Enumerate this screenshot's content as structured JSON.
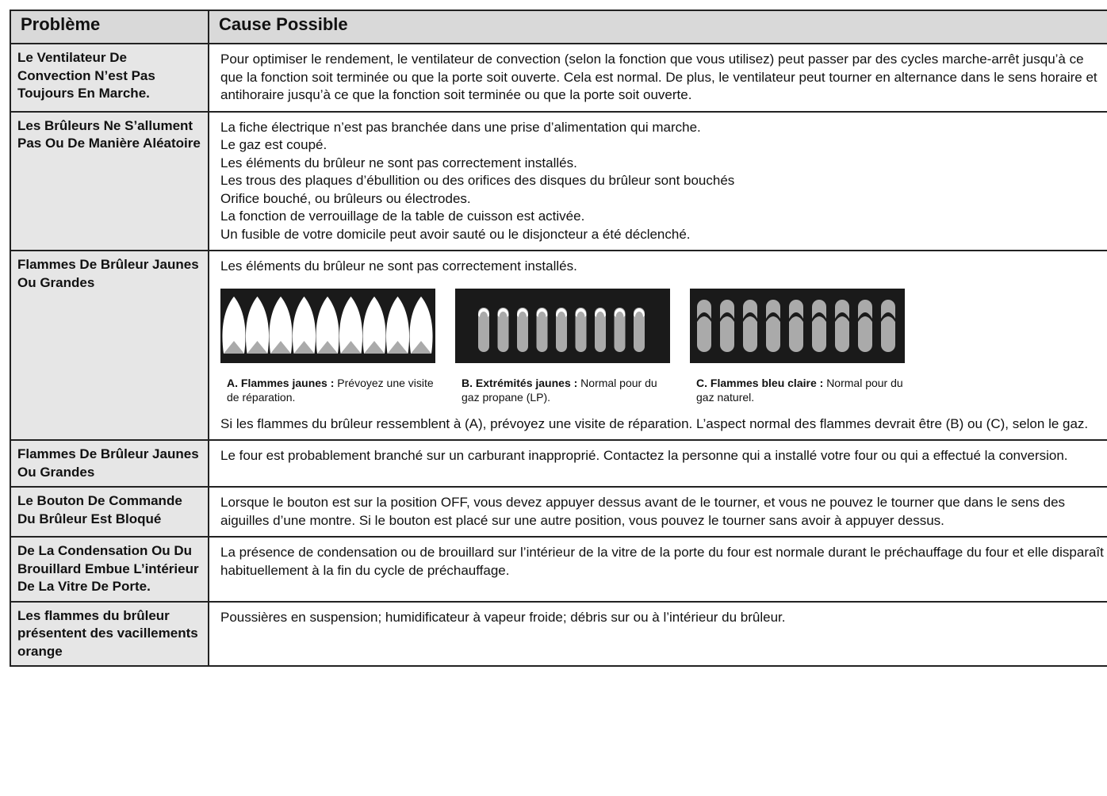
{
  "header": {
    "problem": "Problème",
    "cause": "Cause Possible"
  },
  "rows": [
    {
      "problem": "Le Ventilateur De Convection N’est Pas Toujours En Marche.",
      "cause": [
        "Pour optimiser le rendement, le ventilateur de convection (selon la fonction que vous utilisez) peut passer par des cycles marche-arrêt jusqu’à ce que la fonction soit terminée ou que la porte soit ouverte. Cela est normal. De plus, le ventilateur peut tourner en alternance dans le sens horaire et antihoraire jusqu’à ce que la fonction soit terminée ou que la porte soit ouverte."
      ]
    },
    {
      "problem": "Les Brûleurs Ne S’allument Pas Ou De Manière Aléatoire",
      "cause": [
        "La fiche électrique n’est pas branchée dans une prise d’alimentation qui marche.",
        "Le gaz est coupé.",
        "Les éléments du brûleur ne sont pas correctement installés.",
        "Les trous des plaques d’ébullition ou des orifices des disques du brûleur sont bouchés",
        "Orifice bouché, ou brûleurs ou électrodes.",
        "La fonction de verrouillage de la table de cuisson est activée.",
        "Un fusible de votre domicile peut avoir sauté ou le disjoncteur a été déclenché."
      ]
    },
    {
      "problem": "Flammes De Brûleur Jaunes Ou Grandes",
      "cause": [
        "Les éléments du brûleur ne sont pas correctement installés."
      ],
      "figures": [
        {
          "label": "A. Flammes jaunes :",
          "text": "Prévoyez une visite de réparation."
        },
        {
          "label": "B. Extrémités jaunes :",
          "text": "Normal pour du gaz propane (LP)."
        },
        {
          "label": "C. Flammes bleu claire :",
          "text": "Normal pour du gaz naturel."
        }
      ],
      "note": "Si les flammes du brûleur ressemblent à (A), prévoyez une visite de réparation. L’aspect normal des flammes devrait être (B) ou (C), selon le gaz."
    },
    {
      "problem": "Flammes De Brûleur Jaunes Ou Grandes",
      "cause": [
        "Le four est probablement branché sur un carburant inapproprié. Contactez la personne qui a installé votre four ou qui a effectué la conversion."
      ]
    },
    {
      "problem": "Le Bouton De Commande Du Brûleur Est Bloqué",
      "cause": [
        "Lorsque le bouton est sur la position OFF, vous devez appuyer dessus avant de le tourner, et vous ne pouvez le tourner que dans le sens des aiguilles d’une montre. Si le bouton est placé sur une autre position, vous pouvez le tourner sans avoir à appuyer dessus."
      ]
    },
    {
      "problem": "De La Condensation Ou Du Brouillard Embue L’intérieur De La Vitre De Porte.",
      "cause": [
        "La présence de condensation ou de brouillard sur l’intérieur de la vitre de la porte du four est normale durant le préchauffage du four et elle disparaît habituellement à la fin du cycle de préchauffage."
      ]
    },
    {
      "problem": "Les flammes du brûleur présentent des vacillements orange",
      "cause": [
        "Poussières en suspension; humidificateur à vapeur froide; débris sur ou à l’intérieur du brûleur."
      ]
    }
  ]
}
